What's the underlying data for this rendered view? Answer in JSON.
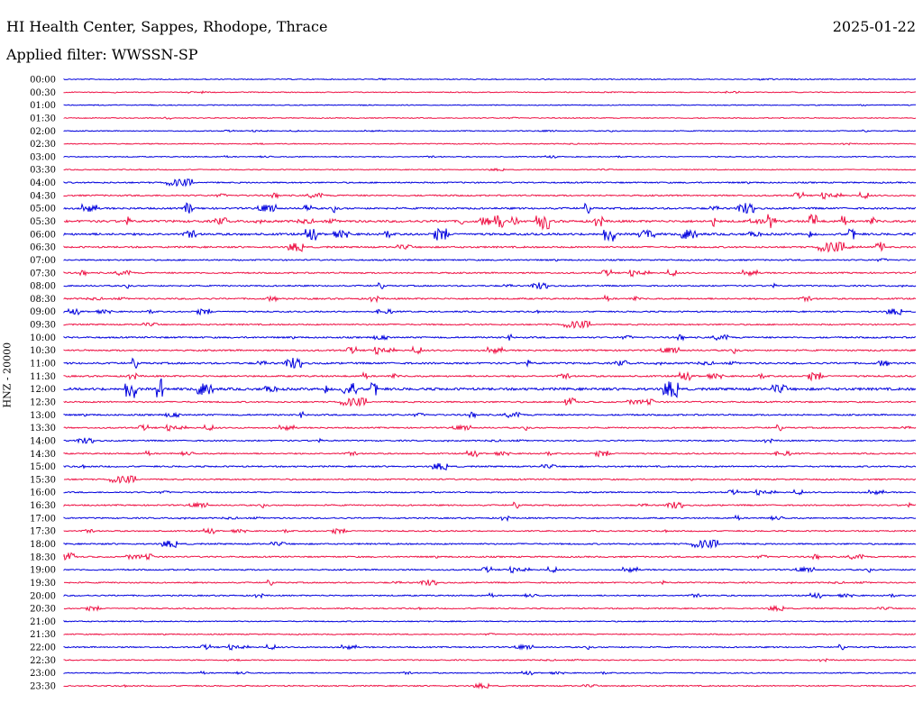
{
  "header": {
    "station": "HI Health Center, Sappes, Rhodope, Thrace",
    "date": "2025-01-22",
    "filter": "Applied filter: WWSSN-SP",
    "channel_label": "HNZ - 20000"
  },
  "chart_data": {
    "type": "line",
    "title": "HI Health Center, Sappes, Rhodope, Thrace",
    "ylabel": "HNZ - 20000",
    "series_colors": [
      "#0000dd",
      "#ee1144"
    ],
    "grid": false,
    "rows": [
      {
        "label": "00:00",
        "level": 0.1
      },
      {
        "label": "00:30",
        "level": 0.1
      },
      {
        "label": "01:00",
        "level": 0.05
      },
      {
        "label": "01:30",
        "level": 0.12
      },
      {
        "label": "02:00",
        "level": 0.08
      },
      {
        "label": "02:30",
        "level": 0.12
      },
      {
        "label": "03:00",
        "level": 0.12
      },
      {
        "label": "03:30",
        "level": 0.1
      },
      {
        "label": "04:00",
        "level": 0.35
      },
      {
        "label": "04:30",
        "level": 0.4
      },
      {
        "label": "05:00",
        "level": 0.6
      },
      {
        "label": "05:30",
        "level": 0.85
      },
      {
        "label": "06:00",
        "level": 0.8
      },
      {
        "label": "06:30",
        "level": 0.5
      },
      {
        "label": "07:00",
        "level": 0.35
      },
      {
        "label": "07:30",
        "level": 0.4
      },
      {
        "label": "08:00",
        "level": 0.35
      },
      {
        "label": "08:30",
        "level": 0.45
      },
      {
        "label": "09:00",
        "level": 0.35
      },
      {
        "label": "09:30",
        "level": 0.35
      },
      {
        "label": "10:00",
        "level": 0.45
      },
      {
        "label": "10:30",
        "level": 0.45
      },
      {
        "label": "11:00",
        "level": 0.6
      },
      {
        "label": "11:30",
        "level": 0.5
      },
      {
        "label": "12:00",
        "level": 1.0
      },
      {
        "label": "12:30",
        "level": 0.4
      },
      {
        "label": "13:00",
        "level": 0.45
      },
      {
        "label": "13:30",
        "level": 0.35
      },
      {
        "label": "14:00",
        "level": 0.3
      },
      {
        "label": "14:30",
        "level": 0.35
      },
      {
        "label": "15:00",
        "level": 0.4
      },
      {
        "label": "15:30",
        "level": 0.35
      },
      {
        "label": "16:00",
        "level": 0.3
      },
      {
        "label": "16:30",
        "level": 0.35
      },
      {
        "label": "17:00",
        "level": 0.35
      },
      {
        "label": "17:30",
        "level": 0.3
      },
      {
        "label": "18:00",
        "level": 0.4
      },
      {
        "label": "18:30",
        "level": 0.4
      },
      {
        "label": "19:00",
        "level": 0.35
      },
      {
        "label": "19:30",
        "level": 0.3
      },
      {
        "label": "20:00",
        "level": 0.3
      },
      {
        "label": "20:30",
        "level": 0.25
      },
      {
        "label": "21:00",
        "level": 0.2
      },
      {
        "label": "21:30",
        "level": 0.2
      },
      {
        "label": "22:00",
        "level": 0.3
      },
      {
        "label": "22:30",
        "level": 0.2
      },
      {
        "label": "23:00",
        "level": 0.2
      },
      {
        "label": "23:30",
        "level": 0.25
      }
    ]
  }
}
